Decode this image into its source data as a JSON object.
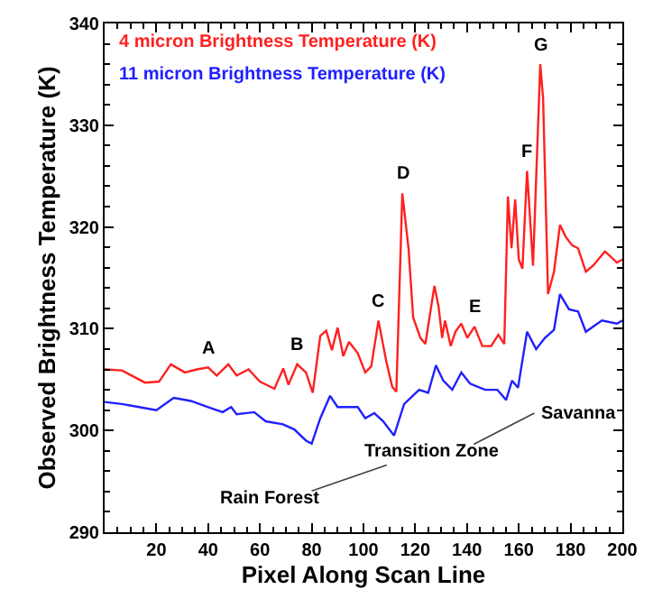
{
  "chart_data": {
    "type": "line",
    "xlabel": "Pixel Along Scan Line",
    "ylabel": "Observed Brightness Temperature (K)",
    "xlim": [
      0,
      200
    ],
    "xticks": [
      20,
      40,
      60,
      80,
      100,
      120,
      140,
      160,
      180,
      200
    ],
    "ylim": [
      290,
      340
    ],
    "yticks": [
      290,
      300,
      310,
      320,
      330,
      340
    ],
    "legend": "top left",
    "marker": "none",
    "line_style": "solid",
    "series": [
      {
        "name": "4 micron Brightness Temperature (K)",
        "color": "#ff2020",
        "x": [
          0,
          6.7,
          15.6,
          21,
          25.6,
          31,
          35.6,
          40,
          43.3,
          47.8,
          51,
          55.6,
          60,
          65.6,
          69,
          71,
          74.4,
          77.8,
          80.4,
          83.3,
          85.6,
          87.8,
          90,
          92.2,
          94.4,
          97.8,
          100.7,
          103,
          105.8,
          108.8,
          111.1,
          112.7,
          115,
          117.4,
          119.2,
          122,
          123.9,
          127.4,
          129,
          130.4,
          131.5,
          133.7,
          135.5,
          137.8,
          140.1,
          142.9,
          145.9,
          149.3,
          152.1,
          154.4,
          155.8,
          157.2,
          158.6,
          160,
          161.4,
          163.2,
          165.5,
          168.3,
          169.4,
          171.3,
          173.6,
          175.9,
          178.2,
          180.6,
          182.9,
          185.9,
          188.7,
          193.3,
          197.9,
          200
        ],
        "values": [
          306,
          305.9,
          304.7,
          304.8,
          306.5,
          305.7,
          306,
          306.2,
          305.4,
          306.5,
          305.4,
          306,
          304.8,
          304.1,
          306.1,
          304.5,
          306.5,
          305.7,
          303.7,
          309.3,
          309.8,
          307.9,
          310.1,
          307.3,
          308.7,
          307.6,
          305.7,
          306.3,
          310.8,
          306.8,
          304.3,
          303.8,
          323.3,
          317.9,
          311.1,
          309.1,
          308.5,
          314.2,
          312.2,
          309.1,
          310.8,
          308.3,
          309.7,
          310.5,
          309.1,
          310.2,
          308.3,
          308.3,
          309.4,
          308.5,
          323,
          317.9,
          322.7,
          316.8,
          315.9,
          325.5,
          316.2,
          336,
          332.6,
          313.4,
          315.6,
          320.2,
          319,
          318.2,
          317.9,
          315.6,
          316.2,
          317.6,
          316.5,
          316.8
        ]
      },
      {
        "name": "11 micron Brightness Temperature (K)",
        "color": "#2020ff",
        "x": [
          0,
          6.7,
          13.3,
          20,
          26.7,
          33.3,
          40,
          45.6,
          48.9,
          51,
          57.8,
          62.2,
          68.9,
          73.3,
          77.8,
          80,
          83.3,
          87.1,
          90,
          93.3,
          97.8,
          100.7,
          104.2,
          107.6,
          111.8,
          115.7,
          121.5,
          125,
          128,
          130.8,
          134.3,
          137.8,
          141.2,
          147,
          151.7,
          155.1,
          157.4,
          159.7,
          163.2,
          166.7,
          170.1,
          173.6,
          175.9,
          179.4,
          182.9,
          185.9,
          192.1,
          197.9,
          200
        ],
        "values": [
          302.8,
          302.6,
          302.3,
          302,
          303.2,
          302.9,
          302.3,
          301.8,
          302.3,
          301.6,
          301.8,
          300.9,
          300.6,
          300.1,
          299,
          298.7,
          301.2,
          303.4,
          302.3,
          302.3,
          302.3,
          301.2,
          301.7,
          300.9,
          299.5,
          302.6,
          304,
          303.7,
          306.4,
          304.9,
          304,
          305.7,
          304.6,
          304,
          304,
          303,
          304.9,
          304.2,
          309.7,
          308,
          309.1,
          309.9,
          313.4,
          311.9,
          311.7,
          309.7,
          310.8,
          310.5,
          310.8
        ]
      }
    ],
    "annotations": [
      {
        "text": "A",
        "x": 40,
        "y": 306.2
      },
      {
        "text": "B",
        "x": 74.4,
        "y": 306.5
      },
      {
        "text": "C",
        "x": 105.8,
        "y": 310.8
      },
      {
        "text": "D",
        "x": 115,
        "y": 323.3
      },
      {
        "text": "E",
        "x": 142.9,
        "y": 310.2
      },
      {
        "text": "F",
        "x": 163.2,
        "y": 325.5
      },
      {
        "text": "G",
        "x": 168.3,
        "y": 336
      },
      "Rain Forest",
      "Transition Zone",
      "Savanna"
    ]
  }
}
